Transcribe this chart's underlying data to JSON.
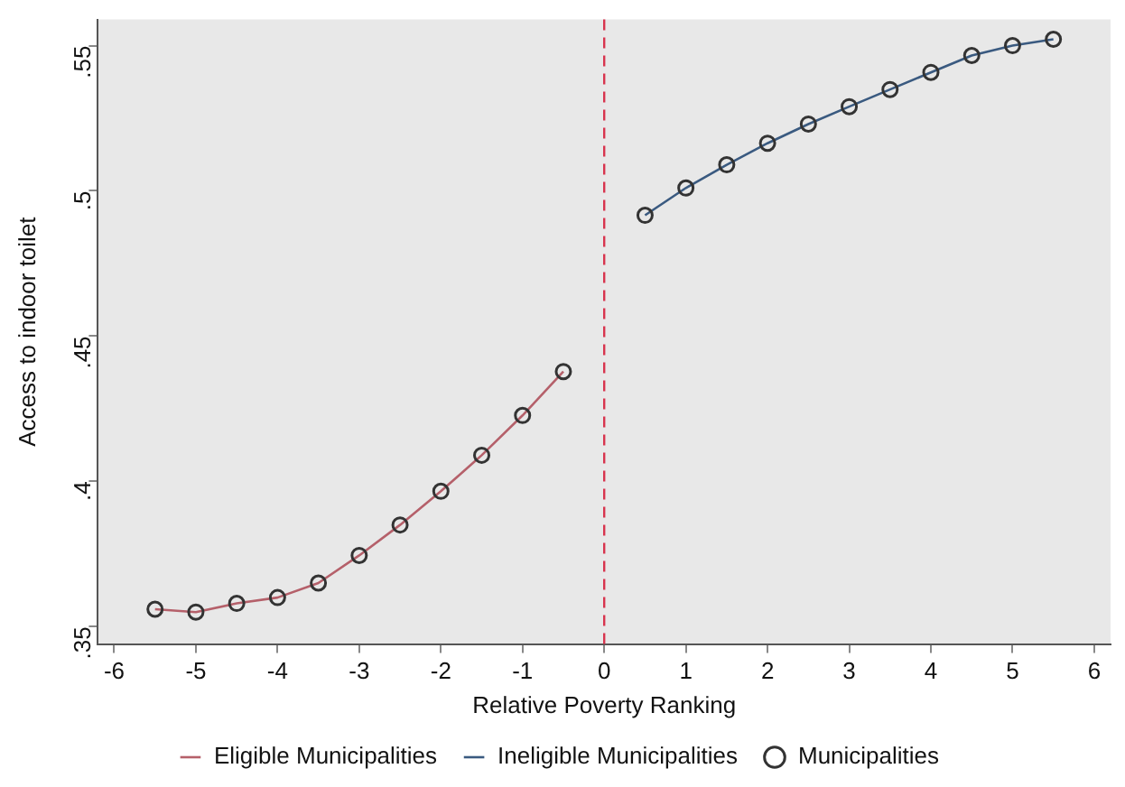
{
  "chart_data": {
    "type": "line",
    "xlabel": "Relative Poverty Ranking",
    "ylabel": "Access to indoor toilet",
    "xlim": [
      -6.2,
      6.2
    ],
    "xticks": [
      -6,
      -5,
      -4,
      -3,
      -2,
      -1,
      0,
      1,
      2,
      3,
      4,
      5,
      6
    ],
    "ylim": [
      0.344,
      0.559
    ],
    "yticks": [
      {
        "value": 0.35,
        "label": ".35"
      },
      {
        "value": 0.4,
        "label": ".4"
      },
      {
        "value": 0.45,
        "label": ".45"
      },
      {
        "value": 0.5,
        "label": ".5"
      },
      {
        "value": 0.55,
        "label": ".55"
      }
    ],
    "grid": false,
    "legend": "bottom",
    "ref_lines": [
      {
        "axis": "x",
        "value": 0,
        "color": "#d8344e",
        "line_style": "dashed"
      }
    ],
    "series": [
      {
        "name": "Eligible Municipalities",
        "marker": "none",
        "color": "#b5606a",
        "x": [
          -5.5,
          -5,
          -4.5,
          -4,
          -3.5,
          -3,
          -2.5,
          -2,
          -1.5,
          -1,
          -0.5
        ],
        "values": [
          0.356,
          0.355,
          0.358,
          0.36,
          0.365,
          0.3745,
          0.385,
          0.3966,
          0.409,
          0.4227,
          0.4378
        ]
      },
      {
        "name": "Ineligible Municipalities",
        "marker": "none",
        "color": "#3a5a80",
        "x": [
          0.5,
          1,
          1.5,
          2,
          2.5,
          3,
          3.5,
          4,
          4.5,
          5,
          5.5
        ],
        "values": [
          0.4916,
          0.501,
          0.509,
          0.5164,
          0.523,
          0.529,
          0.5349,
          0.5408,
          0.5466,
          0.55,
          0.5522
        ]
      },
      {
        "name": "Municipalities",
        "type": "scatter",
        "marker": "circle",
        "color": "#333333",
        "x": [
          -5.5,
          -5,
          -4.5,
          -4,
          -3.5,
          -3,
          -2.5,
          -2,
          -1.5,
          -1,
          -0.5,
          0.5,
          1,
          1.5,
          2,
          2.5,
          3,
          3.5,
          4,
          4.5,
          5,
          5.5
        ],
        "values": [
          0.356,
          0.355,
          0.358,
          0.36,
          0.365,
          0.3745,
          0.385,
          0.3966,
          0.409,
          0.4227,
          0.4378,
          0.4916,
          0.501,
          0.509,
          0.5164,
          0.523,
          0.529,
          0.5349,
          0.5408,
          0.5466,
          0.55,
          0.5522
        ]
      }
    ]
  }
}
